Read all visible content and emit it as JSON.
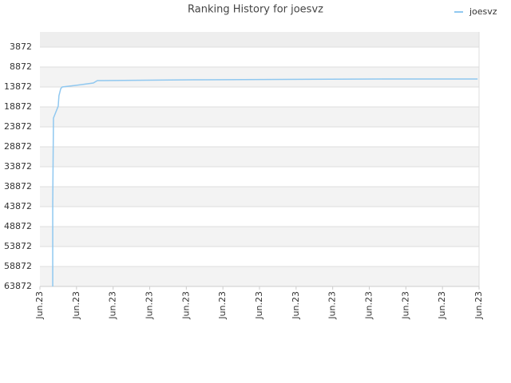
{
  "chart_data": {
    "type": "line",
    "title": "Ranking History for joesvz",
    "xlim": [
      0,
      12
    ],
    "xticks": [
      {
        "value": 0,
        "label": "Jun.23"
      },
      {
        "value": 1,
        "label": "Jun.23"
      },
      {
        "value": 2,
        "label": "Jun.23"
      },
      {
        "value": 3,
        "label": "Jun.23"
      },
      {
        "value": 4,
        "label": "Jun.23"
      },
      {
        "value": 5,
        "label": "Jun.23"
      },
      {
        "value": 6,
        "label": "Jun.23"
      },
      {
        "value": 7,
        "label": "Jun.23"
      },
      {
        "value": 8,
        "label": "Jun.23"
      },
      {
        "value": 9,
        "label": "Jun.23"
      },
      {
        "value": 10,
        "label": "Jun.23"
      },
      {
        "value": 11,
        "label": "Jun.23"
      },
      {
        "value": 12,
        "label": "Jun.23"
      }
    ],
    "ylim": [
      63872,
      72
    ],
    "yticks": [
      3872,
      8872,
      13872,
      18872,
      23872,
      28872,
      33872,
      38872,
      43872,
      48872,
      53872,
      58872,
      63872
    ],
    "grid": true,
    "legend": "top-right",
    "x": [
      0.35,
      0.35,
      0.37,
      0.5,
      0.52,
      0.57,
      0.61,
      0.98,
      1.46,
      1.57,
      4.19,
      9.34,
      11.96
    ],
    "series": [
      {
        "name": "joesvz",
        "color": "#90c8f0",
        "values": [
          63872,
          43072,
          21672,
          18672,
          16072,
          14272,
          13872,
          13472,
          12872,
          12272,
          12072,
          11872,
          11872
        ]
      }
    ]
  }
}
